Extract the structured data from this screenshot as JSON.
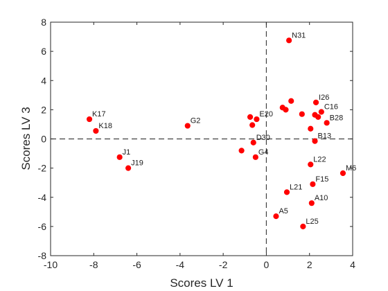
{
  "chart_data": {
    "type": "scatter",
    "title": "",
    "xlabel": "Scores LV 1",
    "ylabel": "Scores LV 3",
    "xlim": [
      -10,
      4
    ],
    "ylim": [
      -8,
      8
    ],
    "xticks": [
      -10,
      -8,
      -6,
      -4,
      -2,
      0,
      2,
      4
    ],
    "yticks": [
      -8,
      -6,
      -4,
      -2,
      0,
      2,
      4,
      6,
      8
    ],
    "grid": false,
    "reference_lines": {
      "x": 0,
      "y": 0,
      "style": "dashed"
    },
    "marker_color": "#ff0000",
    "points": [
      {
        "label": "N31",
        "x": 1.05,
        "y": 6.75
      },
      {
        "label": "I26",
        "x": 2.3,
        "y": 2.5
      },
      {
        "label": "C16",
        "x": 2.55,
        "y": 1.85
      },
      {
        "label": "B28",
        "x": 2.8,
        "y": 1.1
      },
      {
        "label": "B13",
        "x": 2.25,
        "y": -0.15
      },
      {
        "label": "E20",
        "x": -0.45,
        "y": 1.35
      },
      {
        "label": "D30",
        "x": -0.6,
        "y": -0.25
      },
      {
        "label": "G4",
        "x": -0.5,
        "y": -1.25
      },
      {
        "label": "G2",
        "x": -3.65,
        "y": 0.9
      },
      {
        "label": "K17",
        "x": -8.2,
        "y": 1.35
      },
      {
        "label": "K18",
        "x": -7.9,
        "y": 0.55
      },
      {
        "label": "J1",
        "x": -6.8,
        "y": -1.25
      },
      {
        "label": "J19",
        "x": -6.4,
        "y": -2.0
      },
      {
        "label": "L22",
        "x": 2.05,
        "y": -1.75
      },
      {
        "label": "M6",
        "x": 3.55,
        "y": -2.35
      },
      {
        "label": "F15",
        "x": 2.15,
        "y": -3.1
      },
      {
        "label": "L21",
        "x": 0.95,
        "y": -3.65
      },
      {
        "label": "A10",
        "x": 2.1,
        "y": -4.4
      },
      {
        "label": "A5",
        "x": 0.45,
        "y": -5.3
      },
      {
        "label": "L25",
        "x": 1.7,
        "y": -6.0
      },
      {
        "label": "",
        "x": 1.15,
        "y": 2.6
      },
      {
        "label": "",
        "x": 0.75,
        "y": 2.15
      },
      {
        "label": "",
        "x": 0.9,
        "y": 2.0
      },
      {
        "label": "",
        "x": 1.65,
        "y": 1.7
      },
      {
        "label": "",
        "x": 2.25,
        "y": 1.65
      },
      {
        "label": "",
        "x": 2.4,
        "y": 1.5
      },
      {
        "label": "",
        "x": 2.05,
        "y": 0.7
      },
      {
        "label": "",
        "x": -0.75,
        "y": 1.5
      },
      {
        "label": "",
        "x": -0.65,
        "y": 0.95
      },
      {
        "label": "",
        "x": -1.15,
        "y": -0.8
      }
    ]
  }
}
